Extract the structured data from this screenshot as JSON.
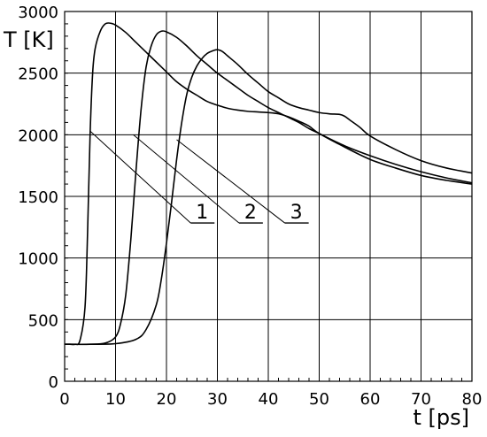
{
  "chart_data": {
    "type": "line",
    "title": "",
    "xlabel": "t [ps]",
    "ylabel": "T [K]",
    "xlim": [
      0,
      80
    ],
    "ylim": [
      0,
      3000
    ],
    "xticks": [
      0,
      10,
      20,
      30,
      40,
      50,
      60,
      70,
      80
    ],
    "yticks": [
      0,
      500,
      1000,
      1500,
      2000,
      2500,
      3000
    ],
    "grid": true,
    "legend": "none",
    "series": [
      {
        "name": "1",
        "label_point": [
          27,
          1270
        ],
        "leader_from": [
          5,
          2030
        ],
        "x": [
          0,
          1,
          2,
          3,
          4,
          4.5,
          5,
          5.5,
          6,
          7,
          8,
          9,
          10,
          12,
          14,
          16,
          18,
          20,
          22,
          24,
          26,
          28,
          30,
          32,
          34,
          36,
          38,
          40,
          42,
          44,
          46,
          48,
          50,
          55,
          60,
          65,
          70,
          75,
          80
        ],
        "y": [
          300,
          300,
          300,
          330,
          600,
          1200,
          2000,
          2500,
          2700,
          2840,
          2900,
          2905,
          2890,
          2830,
          2750,
          2670,
          2590,
          2510,
          2430,
          2370,
          2320,
          2270,
          2240,
          2215,
          2200,
          2190,
          2185,
          2180,
          2170,
          2145,
          2110,
          2070,
          2010,
          1900,
          1800,
          1730,
          1670,
          1630,
          1600
        ]
      },
      {
        "name": "2",
        "label_point": [
          36.5,
          1270
        ],
        "leader_from": [
          13.5,
          2000
        ],
        "x": [
          0,
          5,
          8,
          10,
          11,
          12,
          13,
          14,
          15,
          16,
          17,
          18,
          19,
          20,
          22,
          24,
          26,
          28,
          30,
          32,
          34,
          36,
          38,
          40,
          42,
          44,
          46,
          48,
          50,
          55,
          60,
          65,
          70,
          75,
          80
        ],
        "y": [
          300,
          300,
          310,
          360,
          470,
          700,
          1150,
          1700,
          2200,
          2550,
          2720,
          2810,
          2840,
          2835,
          2790,
          2720,
          2640,
          2570,
          2500,
          2440,
          2380,
          2320,
          2270,
          2220,
          2180,
          2140,
          2100,
          2050,
          2010,
          1910,
          1830,
          1760,
          1700,
          1650,
          1610
        ]
      },
      {
        "name": "3",
        "label_point": [
          45.5,
          1270
        ],
        "leader_from": [
          22,
          1960
        ],
        "x": [
          0,
          5,
          10,
          14,
          16,
          18,
          19,
          20,
          21,
          22,
          23,
          24,
          25,
          26,
          27,
          28,
          29,
          30,
          31,
          32,
          34,
          36,
          38,
          40,
          42,
          44,
          46,
          48,
          50,
          52,
          54,
          55,
          56,
          58,
          60,
          65,
          70,
          75,
          80
        ],
        "y": [
          300,
          300,
          305,
          340,
          420,
          620,
          830,
          1120,
          1450,
          1800,
          2100,
          2330,
          2470,
          2560,
          2620,
          2660,
          2680,
          2690,
          2675,
          2640,
          2570,
          2490,
          2420,
          2350,
          2300,
          2250,
          2220,
          2200,
          2180,
          2170,
          2165,
          2150,
          2120,
          2060,
          1990,
          1880,
          1790,
          1730,
          1690
        ]
      }
    ]
  }
}
